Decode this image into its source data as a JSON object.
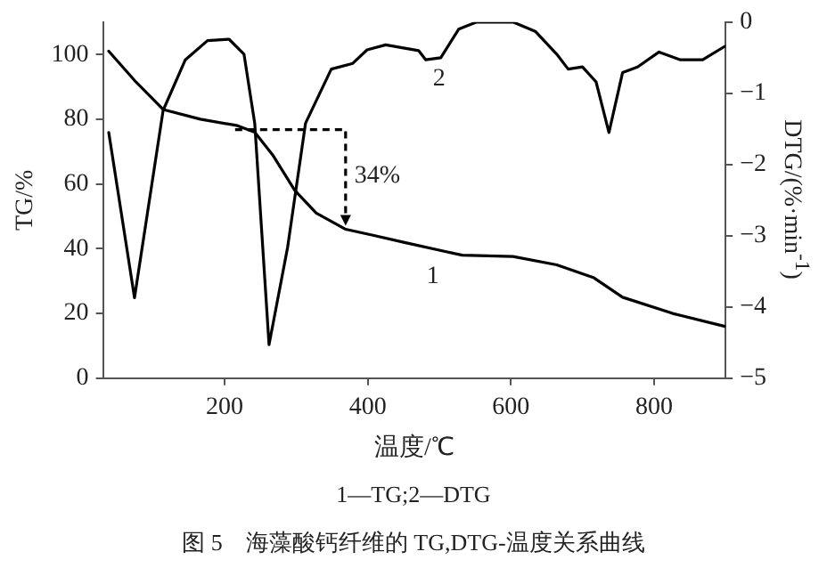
{
  "chart_data": {
    "type": "line",
    "xlabel": "温度/℃",
    "ylabel": "TG/%",
    "y2label": "DTG/(%·min$^{-1}$)",
    "xlim": [
      30,
      900
    ],
    "xticks": [
      200,
      400,
      600,
      800
    ],
    "ylim": [
      0,
      110
    ],
    "yticks": [
      0,
      20,
      40,
      60,
      80,
      100
    ],
    "y2lim": [
      -5,
      0
    ],
    "y2ticks": [
      0,
      -1,
      -2,
      -3,
      -4,
      -5
    ],
    "grid": false,
    "legend": false,
    "marker": "none",
    "line_style": "solid",
    "series": [
      {
        "color": "#000000",
        "x": [
          38,
          74,
          114,
          166,
          218,
          242,
          267,
          298,
          328,
          369,
          410,
          450,
          511,
          532,
          603,
          664,
          716,
          756,
          826,
          899
        ],
        "values": [
          101,
          92,
          83,
          80,
          78,
          76,
          69,
          58,
          51,
          46,
          44,
          42,
          39,
          38,
          37.6,
          35,
          31,
          25,
          20,
          16
        ]
      },
      {
        "color": "#000000",
        "axis": "y2",
        "x": [
          38,
          74,
          114,
          145,
          176,
          206,
          227,
          242,
          262,
          288,
          313,
          349,
          379,
          399,
          425,
          471,
          481,
          502,
          527,
          552,
          603,
          634,
          664,
          680,
          700,
          719,
          737,
          756,
          777,
          807,
          837,
          868,
          899
        ],
        "values": [
          -1.55,
          -3.87,
          -1.24,
          -0.53,
          -0.26,
          -0.24,
          -0.45,
          -1.42,
          -4.53,
          -3.16,
          -1.42,
          -0.66,
          -0.58,
          -0.39,
          -0.32,
          -0.4,
          -0.53,
          -0.5,
          -0.1,
          0,
          0,
          -0.13,
          -0.45,
          -0.66,
          -0.63,
          -0.84,
          -1.55,
          -0.71,
          -0.63,
          -0.42,
          -0.53,
          -0.53,
          -0.34
        ]
      }
    ],
    "annotations": [
      {
        "text": "34%",
        "x": 369,
        "y": 46
      },
      {
        "text": "1",
        "x": 511,
        "y": 39
      },
      "2",
      "1—TG;2—DTG",
      "图 5　海藻酸钙纤维的 TG,DTG-温度关系曲线"
    ]
  }
}
